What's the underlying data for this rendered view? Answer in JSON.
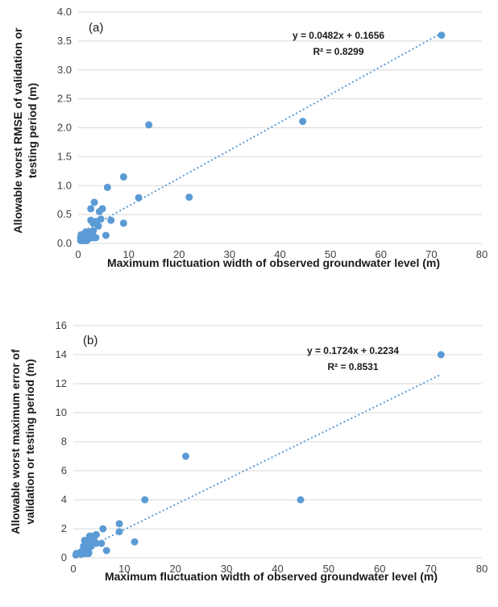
{
  "chart_data": [
    {
      "type": "scatter",
      "panel_label": "(a)",
      "xlabel": "Maximum fluctuation width of observed groundwater level (m)",
      "ylabel": [
        "Allowable worst RMSE of validation or",
        "testing period (m)"
      ],
      "xlim": [
        0,
        80
      ],
      "ylim": [
        0,
        4.0
      ],
      "x_ticks": [
        "0",
        "10",
        "20",
        "30",
        "40",
        "50",
        "60",
        "70",
        "80"
      ],
      "y_ticks": [
        "0.0",
        "0.5",
        "1.0",
        "1.5",
        "2.0",
        "2.5",
        "3.0",
        "3.5",
        "4.0"
      ],
      "grid": "horizontal",
      "marker_color": "#5b9bd5",
      "trendline": {
        "slope": 0.0482,
        "intercept": 0.1656,
        "x_range": [
          0.5,
          72
        ]
      },
      "equation": "y = 0.0482x + 0.1656",
      "r_squared": "R² = 0.8299",
      "points": [
        [
          72,
          3.6
        ],
        [
          44.5,
          2.11
        ],
        [
          14,
          2.05
        ],
        [
          22,
          0.8
        ],
        [
          12,
          0.79
        ],
        [
          9,
          1.15
        ],
        [
          5.8,
          0.97
        ],
        [
          9,
          0.35
        ],
        [
          6.5,
          0.4
        ],
        [
          5.5,
          0.14
        ],
        [
          4.8,
          0.6
        ],
        [
          4.2,
          0.55
        ],
        [
          4.5,
          0.42
        ],
        [
          3.5,
          0.38
        ],
        [
          3.2,
          0.71
        ],
        [
          2.5,
          0.6
        ],
        [
          3,
          0.35
        ],
        [
          2.5,
          0.4
        ],
        [
          4,
          0.3
        ],
        [
          3.5,
          0.1
        ],
        [
          3,
          0.22
        ],
        [
          2.8,
          0.15
        ],
        [
          2.5,
          0.2
        ],
        [
          2.2,
          0.12
        ],
        [
          2,
          0.18
        ],
        [
          1.8,
          0.1
        ],
        [
          1.5,
          0.15
        ],
        [
          1.3,
          0.08
        ],
        [
          1,
          0.12
        ],
        [
          0.8,
          0.05
        ],
        [
          0.5,
          0.1
        ],
        [
          0.5,
          0.05
        ],
        [
          1.2,
          0.05
        ],
        [
          1.5,
          0.2
        ],
        [
          2,
          0.08
        ],
        [
          1,
          0.1
        ],
        [
          0.6,
          0.15
        ],
        [
          3,
          0.1
        ],
        [
          1.7,
          0.05
        ],
        [
          2.7,
          0.1
        ]
      ]
    },
    {
      "type": "scatter",
      "panel_label": "(b)",
      "xlabel": "Maximum fluctuation width of observed groundwater level (m)",
      "ylabel": [
        "Allowable worst maximum error of",
        "validation or testing period (m)"
      ],
      "xlim": [
        0,
        80
      ],
      "ylim": [
        0,
        16
      ],
      "x_ticks": [
        "0",
        "10",
        "20",
        "30",
        "40",
        "50",
        "60",
        "70",
        "80"
      ],
      "y_ticks": [
        "0",
        "2",
        "4",
        "6",
        "8",
        "10",
        "12",
        "14",
        "16"
      ],
      "grid": "horizontal",
      "marker_color": "#5b9bd5",
      "trendline": {
        "slope": 0.1724,
        "intercept": 0.2234,
        "x_range": [
          0.5,
          72
        ]
      },
      "equation": "y = 0.1724x + 0.2234",
      "r_squared": "R² = 0.8531",
      "points": [
        [
          72,
          14
        ],
        [
          22,
          7
        ],
        [
          44.5,
          4
        ],
        [
          14,
          4
        ],
        [
          12,
          1.1
        ],
        [
          9,
          2.35
        ],
        [
          9,
          1.8
        ],
        [
          6.5,
          0.5
        ],
        [
          5.8,
          2
        ],
        [
          5.5,
          1
        ],
        [
          4.5,
          1.6
        ],
        [
          4,
          1.3
        ],
        [
          4.5,
          1
        ],
        [
          3.5,
          0.8
        ],
        [
          3.2,
          1.5
        ],
        [
          3,
          0.3
        ],
        [
          3,
          1.2
        ],
        [
          2.5,
          0.6
        ],
        [
          2.5,
          1
        ],
        [
          2.2,
          1.2
        ],
        [
          2,
          0.3
        ],
        [
          2,
          0.8
        ],
        [
          1.8,
          0.5
        ],
        [
          1.5,
          0.4
        ],
        [
          1.2,
          0.3
        ],
        [
          1,
          0.3
        ],
        [
          0.5,
          0.2
        ],
        [
          0.6,
          0.3
        ],
        [
          1.5,
          0.25
        ],
        [
          2.5,
          0.3
        ],
        [
          3.5,
          1
        ],
        [
          3,
          0.4
        ],
        [
          4,
          1.5
        ]
      ]
    }
  ]
}
